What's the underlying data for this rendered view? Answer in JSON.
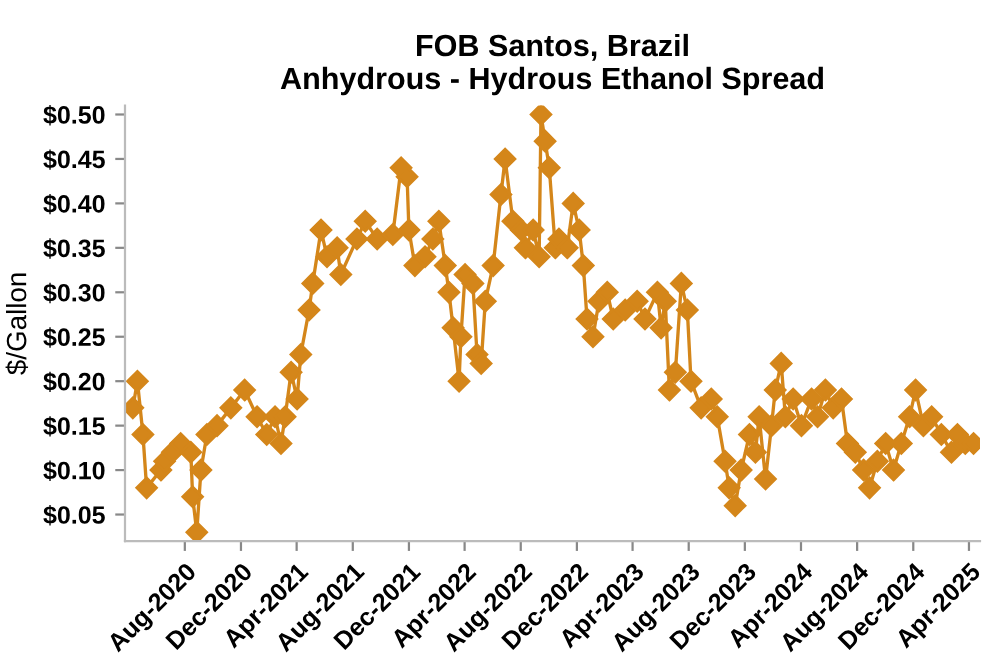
{
  "chart_data": {
    "type": "line",
    "title": "FOB Santos, Brazil\nAnhydrous - Hydrous Ethanol Spread",
    "ylabel": "$/Gallon",
    "x": [
      "2020-04-10",
      "2020-04-20",
      "2020-05-02",
      "2020-05-10",
      "2020-06-10",
      "2020-06-18",
      "2020-07-05",
      "2020-07-23",
      "2020-08-14",
      "2020-08-18",
      "2020-08-27",
      "2020-09-05",
      "2020-09-18",
      "2020-10-10",
      "2020-11-09",
      "2020-12-09",
      "2021-01-05",
      "2021-01-26",
      "2021-02-13",
      "2021-02-26",
      "2021-03-07",
      "2021-03-20",
      "2021-04-02",
      "2021-04-10",
      "2021-04-28",
      "2021-05-06",
      "2021-05-24",
      "2021-06-06",
      "2021-06-28",
      "2021-07-06",
      "2021-08-10",
      "2021-08-28",
      "2021-09-23",
      "2021-10-27",
      "2021-11-14",
      "2021-11-27",
      "2021-12-01",
      "2021-12-14",
      "2022-01-05",
      "2022-01-22",
      "2022-02-04",
      "2022-02-18",
      "2022-02-26",
      "2022-03-07",
      "2022-03-20",
      "2022-03-24",
      "2022-04-02",
      "2022-04-19",
      "2022-04-28",
      "2022-05-07",
      "2022-05-16",
      "2022-06-02",
      "2022-06-19",
      "2022-06-28",
      "2022-07-15",
      "2022-08-02",
      "2022-08-11",
      "2022-08-28",
      "2022-09-10",
      "2022-09-14",
      "2022-09-23",
      "2022-10-02",
      "2022-10-15",
      "2022-10-23",
      "2022-11-10",
      "2022-11-23",
      "2022-12-06",
      "2022-12-15",
      "2022-12-23",
      "2023-01-05",
      "2023-01-18",
      "2023-02-05",
      "2023-02-18",
      "2023-03-16",
      "2023-04-11",
      "2023-04-28",
      "2023-05-25",
      "2023-06-02",
      "2023-06-11",
      "2023-06-20",
      "2023-07-03",
      "2023-07-16",
      "2023-07-29",
      "2023-08-06",
      "2023-08-28",
      "2023-09-19",
      "2023-10-02",
      "2023-10-19",
      "2023-10-28",
      "2023-11-10",
      "2023-11-23",
      "2023-12-11",
      "2023-12-24",
      "2024-01-01",
      "2024-01-15",
      "2024-01-28",
      "2024-02-05",
      "2024-02-18",
      "2024-02-27",
      "2024-03-15",
      "2024-04-02",
      "2024-04-24",
      "2024-05-07",
      "2024-05-24",
      "2024-06-10",
      "2024-06-28",
      "2024-07-11",
      "2024-07-28",
      "2024-08-15",
      "2024-08-28",
      "2024-09-14",
      "2024-10-02",
      "2024-10-19",
      "2024-11-05",
      "2024-11-23",
      "2024-12-06",
      "2024-12-23",
      "2025-01-10",
      "2025-01-31",
      "2025-02-22",
      "2025-03-07",
      "2025-03-24",
      "2025-04-11"
    ],
    "series": [
      {
        "color": "#d4861a",
        "values": [
          0.17,
          0.2,
          0.14,
          0.08,
          0.1,
          0.11,
          0.12,
          0.13,
          0.12,
          0.07,
          0.03,
          0.1,
          0.14,
          0.15,
          0.17,
          0.19,
          0.16,
          0.14,
          0.16,
          0.13,
          0.16,
          0.21,
          0.18,
          0.23,
          0.28,
          0.31,
          0.37,
          0.34,
          0.35,
          0.32,
          0.36,
          0.38,
          0.36,
          0.365,
          0.44,
          0.43,
          0.37,
          0.33,
          0.34,
          0.36,
          0.38,
          0.33,
          0.3,
          0.26,
          0.2,
          0.25,
          0.32,
          0.31,
          0.23,
          0.22,
          0.29,
          0.33,
          0.41,
          0.45,
          0.38,
          0.37,
          0.35,
          0.37,
          0.34,
          0.5,
          0.47,
          0.44,
          0.35,
          0.36,
          0.35,
          0.4,
          0.37,
          0.33,
          0.27,
          0.25,
          0.29,
          0.3,
          0.27,
          0.28,
          0.29,
          0.27,
          0.3,
          0.26,
          0.29,
          0.19,
          0.21,
          0.31,
          0.28,
          0.2,
          0.17,
          0.18,
          0.16,
          0.11,
          0.08,
          0.06,
          0.1,
          0.14,
          0.12,
          0.16,
          0.09,
          0.15,
          0.19,
          0.22,
          0.16,
          0.18,
          0.15,
          0.18,
          0.16,
          0.19,
          0.17,
          0.18,
          0.13,
          0.12,
          0.1,
          0.08,
          0.11,
          0.13,
          0.1,
          0.13,
          0.16,
          0.19,
          0.15,
          0.16,
          0.14,
          0.12,
          0.14,
          0.13,
          0.13
        ]
      }
    ],
    "marker": "diamond",
    "line_style": "solid",
    "grid": false,
    "legend": false,
    "xlim": [
      "2020-03-24",
      "2025-04-25"
    ],
    "xticks": [
      {
        "value": "2020-08-01",
        "label": "Aug-2020"
      },
      {
        "value": "2020-12-01",
        "label": "Dec-2020"
      },
      {
        "value": "2021-04-01",
        "label": "Apr-2021"
      },
      {
        "value": "2021-08-01",
        "label": "Aug-2021"
      },
      {
        "value": "2021-12-01",
        "label": "Dec-2021"
      },
      {
        "value": "2022-04-01",
        "label": "Apr-2022"
      },
      {
        "value": "2022-08-01",
        "label": "Aug-2022"
      },
      {
        "value": "2022-12-01",
        "label": "Dec-2022"
      },
      {
        "value": "2023-04-01",
        "label": "Apr-2023"
      },
      {
        "value": "2023-08-01",
        "label": "Aug-2023"
      },
      {
        "value": "2023-12-01",
        "label": "Dec-2023"
      },
      {
        "value": "2024-04-01",
        "label": "Apr-2024"
      },
      {
        "value": "2024-08-01",
        "label": "Aug-2024"
      },
      {
        "value": "2024-12-01",
        "label": "Dec-2024"
      },
      {
        "value": "2025-04-01",
        "label": "Apr-2025"
      }
    ],
    "ylim": [
      0.02,
      0.51
    ],
    "yticks": [
      {
        "value": 0.05,
        "label": "$0.05"
      },
      {
        "value": 0.1,
        "label": "$0.10"
      },
      {
        "value": 0.15,
        "label": "$0.15"
      },
      {
        "value": 0.2,
        "label": "$0.20"
      },
      {
        "value": 0.25,
        "label": "$0.25"
      },
      {
        "value": 0.3,
        "label": "$0.30"
      },
      {
        "value": 0.35,
        "label": "$0.35"
      },
      {
        "value": 0.4,
        "label": "$0.40"
      },
      {
        "value": 0.45,
        "label": "$0.45"
      },
      {
        "value": 0.5,
        "label": "$0.50"
      }
    ]
  }
}
